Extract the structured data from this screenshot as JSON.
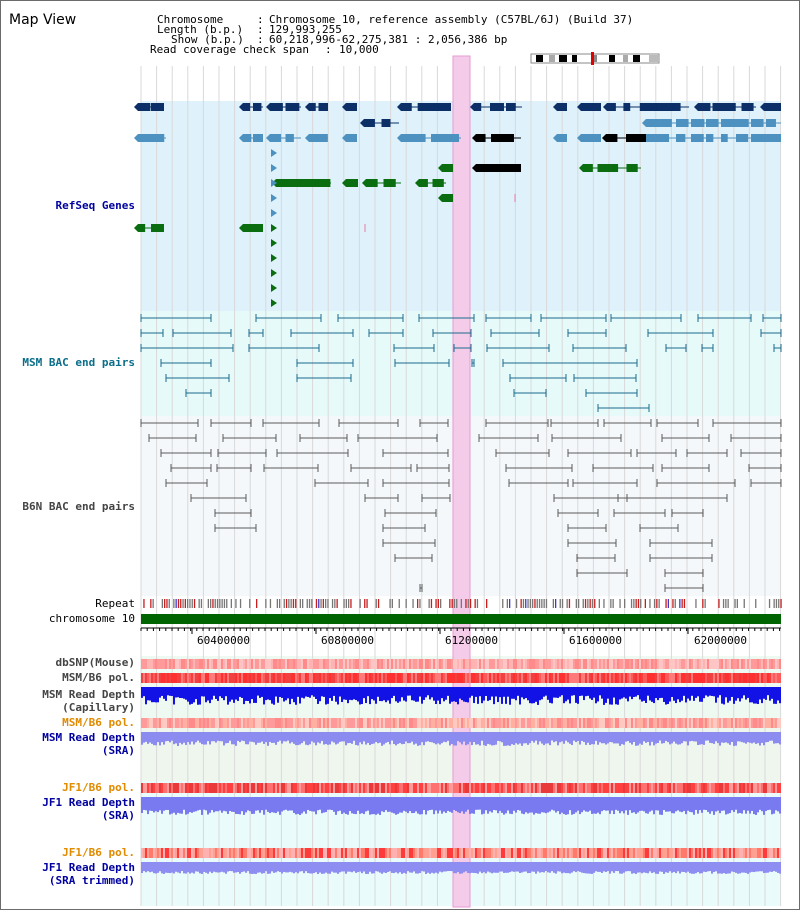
{
  "page": {
    "title": "Map View"
  },
  "info": {
    "chromosome_key": "Chromosome",
    "chromosome_val": "Chromosome 10, reference assembly (C57BL/6J) (Build 37)",
    "length_key": "Length (b.p.)",
    "length_val": "129,993,255",
    "show_key": "Show (b.p.)",
    "show_val": "60,218,996-62,275,381 : 2,056,386 bp",
    "coverage_key": "Read coverage check span",
    "coverage_val": "10,000"
  },
  "tracks": {
    "refseq": "RefSeq Genes",
    "msm_bac": "MSM BAC end pairs",
    "b6n_bac": "B6N BAC end pairs",
    "repeat": "Repeat",
    "chromosome": "chromosome 10",
    "dbsnp": "dbSNP(Mouse)",
    "msm_b6_pol": "MSM/B6 pol.",
    "msm_depth_cap_1": "MSM Read Depth",
    "msm_depth_cap_2": "(Capillary)",
    "msm_b6_pol_2": "MSM/B6 pol.",
    "msm_depth_sra_1": "MSM Read Depth",
    "msm_depth_sra_2": "(SRA)",
    "jf1_b6_pol": "JF1/B6 pol.",
    "jf1_depth_sra_1": "JF1 Read Depth",
    "jf1_depth_sra_2": "(SRA)",
    "jf1_b6_pol_2": "JF1/B6 pol.",
    "jf1_depth_trim_1": "JF1 Read Depth",
    "jf1_depth_trim_2": "(SRA trimmed)"
  },
  "axis": {
    "ticks": [
      "60400000",
      "60800000",
      "61200000",
      "61600000",
      "62000000"
    ]
  },
  "colors": {
    "refseq_bg": "#dff1fb",
    "msm_bac_bg": "#e6fafa",
    "b6n_bac_bg": "#f4f8fb",
    "highlight": "#f4cce9",
    "navy": "#0b2f66",
    "steel": "#4d91c0",
    "green": "#0a6e10",
    "teal": "#1a6b8c",
    "gray": "#555555",
    "label_blue": "#0000a0",
    "label_teal": "#0a6e8a",
    "label_gray": "#444444",
    "label_orange": "#e08b00"
  }
}
